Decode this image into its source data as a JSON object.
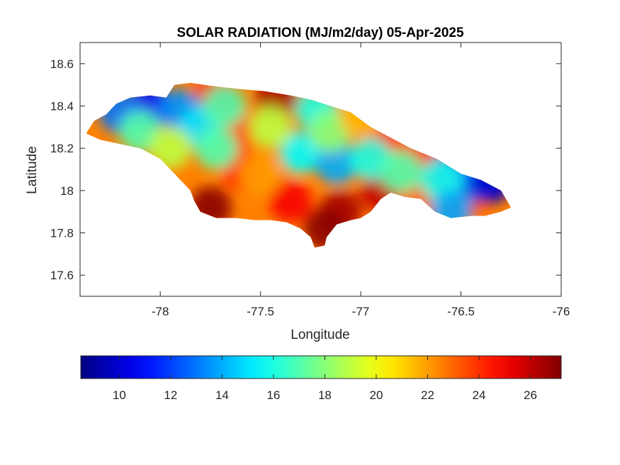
{
  "chart_data": {
    "type": "heatmap",
    "title": "SOLAR RADIATION (MJ/m2/day) 05-Apr-2025",
    "xlabel": "Longitude",
    "ylabel": "Latitude",
    "xlim": [
      -78.4,
      -76.0
    ],
    "ylim": [
      17.5,
      18.7
    ],
    "xticks": [
      "-78",
      "-77.5",
      "-77",
      "-76.5",
      "-76"
    ],
    "xtick_values": [
      -78,
      -77.5,
      -77,
      -76.5,
      -76
    ],
    "yticks": [
      "17.6",
      "17.8",
      "18",
      "18.2",
      "18.4",
      "18.6"
    ],
    "ytick_values": [
      17.6,
      17.8,
      18.0,
      18.2,
      18.4,
      18.6
    ],
    "colormap": "jet",
    "colorbar": {
      "location": "bottom",
      "range": [
        8.5,
        27.2
      ],
      "ticks": [
        "10",
        "12",
        "14",
        "16",
        "18",
        "20",
        "22",
        "24",
        "26"
      ],
      "tick_values": [
        10,
        12,
        14,
        16,
        18,
        20,
        22,
        24,
        26
      ]
    },
    "grid": false,
    "region_outline": [
      [
        -78.37,
        18.27
      ],
      [
        -78.33,
        18.33
      ],
      [
        -78.27,
        18.36
      ],
      [
        -78.22,
        18.41
      ],
      [
        -78.15,
        18.44
      ],
      [
        -78.05,
        18.45
      ],
      [
        -77.97,
        18.44
      ],
      [
        -77.93,
        18.5
      ],
      [
        -77.85,
        18.51
      ],
      [
        -77.78,
        18.5
      ],
      [
        -77.7,
        18.49
      ],
      [
        -77.6,
        18.48
      ],
      [
        -77.48,
        18.47
      ],
      [
        -77.35,
        18.45
      ],
      [
        -77.25,
        18.43
      ],
      [
        -77.15,
        18.4
      ],
      [
        -77.05,
        18.37
      ],
      [
        -76.95,
        18.3
      ],
      [
        -76.85,
        18.25
      ],
      [
        -76.75,
        18.2
      ],
      [
        -76.62,
        18.15
      ],
      [
        -76.5,
        18.08
      ],
      [
        -76.4,
        18.05
      ],
      [
        -76.3,
        18.0
      ],
      [
        -76.25,
        17.92
      ],
      [
        -76.3,
        17.9
      ],
      [
        -76.38,
        17.88
      ],
      [
        -76.45,
        17.88
      ],
      [
        -76.55,
        17.87
      ],
      [
        -76.63,
        17.9
      ],
      [
        -76.7,
        17.96
      ],
      [
        -76.78,
        17.97
      ],
      [
        -76.85,
        17.99
      ],
      [
        -76.9,
        17.96
      ],
      [
        -76.95,
        17.9
      ],
      [
        -77.0,
        17.87
      ],
      [
        -77.05,
        17.86
      ],
      [
        -77.12,
        17.84
      ],
      [
        -77.17,
        17.78
      ],
      [
        -77.18,
        17.74
      ],
      [
        -77.23,
        17.73
      ],
      [
        -77.25,
        17.78
      ],
      [
        -77.3,
        17.82
      ],
      [
        -77.37,
        17.85
      ],
      [
        -77.45,
        17.86
      ],
      [
        -77.53,
        17.86
      ],
      [
        -77.62,
        17.87
      ],
      [
        -77.72,
        17.87
      ],
      [
        -77.8,
        17.9
      ],
      [
        -77.83,
        17.95
      ],
      [
        -77.85,
        18.0
      ],
      [
        -77.92,
        18.07
      ],
      [
        -78.0,
        18.15
      ],
      [
        -78.1,
        18.2
      ],
      [
        -78.2,
        18.22
      ],
      [
        -78.3,
        18.24
      ],
      [
        -78.37,
        18.27
      ]
    ],
    "features": [
      {
        "lon": -77.6,
        "lat": 18.1,
        "value": 24
      },
      {
        "lon": -77.35,
        "lat": 17.95,
        "value": 25
      },
      {
        "lon": -77.1,
        "lat": 17.9,
        "value": 26.5
      },
      {
        "lon": -76.9,
        "lat": 18.0,
        "value": 26
      },
      {
        "lon": -77.75,
        "lat": 17.92,
        "value": 27
      },
      {
        "lon": -77.18,
        "lat": 17.82,
        "value": 27
      },
      {
        "lon": -77.72,
        "lat": 18.45,
        "value": 25
      },
      {
        "lon": -77.42,
        "lat": 18.44,
        "value": 26.5
      },
      {
        "lon": -77.62,
        "lat": 18.3,
        "value": 23.5
      },
      {
        "lon": -76.9,
        "lat": 18.25,
        "value": 24
      },
      {
        "lon": -76.7,
        "lat": 18.18,
        "value": 24
      },
      {
        "lon": -76.5,
        "lat": 17.95,
        "value": 25
      },
      {
        "lon": -76.72,
        "lat": 17.98,
        "value": 23
      },
      {
        "lon": -78.05,
        "lat": 18.4,
        "value": 11
      },
      {
        "lon": -78.2,
        "lat": 18.37,
        "value": 13
      },
      {
        "lon": -77.9,
        "lat": 18.38,
        "value": 13.5
      },
      {
        "lon": -77.8,
        "lat": 18.3,
        "value": 15
      },
      {
        "lon": -77.72,
        "lat": 18.2,
        "value": 17
      },
      {
        "lon": -78.1,
        "lat": 18.28,
        "value": 17
      },
      {
        "lon": -77.95,
        "lat": 18.2,
        "value": 19
      },
      {
        "lon": -77.3,
        "lat": 18.18,
        "value": 15.5
      },
      {
        "lon": -77.12,
        "lat": 18.13,
        "value": 14
      },
      {
        "lon": -77.22,
        "lat": 18.38,
        "value": 16
      },
      {
        "lon": -77.15,
        "lat": 18.28,
        "value": 18
      },
      {
        "lon": -76.95,
        "lat": 18.15,
        "value": 16
      },
      {
        "lon": -76.8,
        "lat": 18.09,
        "value": 17
      },
      {
        "lon": -76.55,
        "lat": 18.09,
        "value": 11.5
      },
      {
        "lon": -76.43,
        "lat": 18.05,
        "value": 13
      },
      {
        "lon": -76.35,
        "lat": 18.04,
        "value": 10
      },
      {
        "lon": -76.6,
        "lat": 18.05,
        "value": 16
      },
      {
        "lon": -76.55,
        "lat": 17.9,
        "value": 14
      },
      {
        "lon": -77.45,
        "lat": 18.3,
        "value": 19
      },
      {
        "lon": -77.5,
        "lat": 18.08,
        "value": 22
      },
      {
        "lon": -77.0,
        "lat": 18.35,
        "value": 21.5
      },
      {
        "lon": -77.68,
        "lat": 18.4,
        "value": 17
      }
    ]
  }
}
